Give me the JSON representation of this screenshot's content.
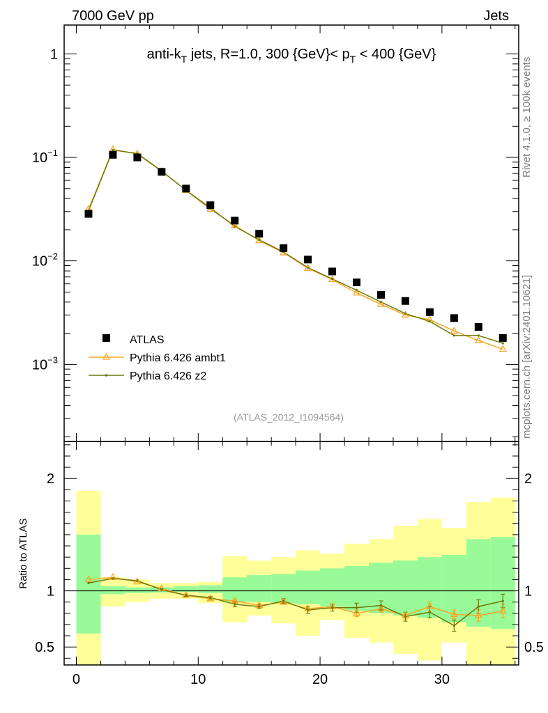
{
  "header": {
    "energy_label": "7000 GeV pp",
    "category_label": "Jets",
    "side_label_top": "Rivet 4.1.0, ≥ 100k events",
    "side_label_bottom": "mcplots.cern.ch [arXiv:2401.10621]",
    "analysis_tag": "(ATLAS_2012_I1094564)"
  },
  "chart_data": {
    "type": "line",
    "title": {
      "pre": "anti-k",
      "sub1": "T",
      "mid": " jets, R=1.0, 300 {GeV}< p",
      "sub2": "T",
      "post": " < 400 {GeV}"
    },
    "xlim": [
      -1,
      36.3
    ],
    "main_ylim": [
      0.00018,
      1.9
    ],
    "ratio_ylim": [
      0.34,
      2.33
    ],
    "ratio_ylabel": "Ratio to ATLAS",
    "x_tick_labels": [
      {
        "value": 0,
        "label": "0"
      },
      {
        "value": 10,
        "label": "10"
      },
      {
        "value": 20,
        "label": "20"
      },
      {
        "value": 30,
        "label": "30"
      }
    ],
    "main_y_tick_labels": [
      {
        "value": 1,
        "base": "1",
        "exp": ""
      },
      {
        "value": 0.1,
        "base": "10",
        "exp": "−1"
      },
      {
        "value": 0.01,
        "base": "10",
        "exp": "−2"
      },
      {
        "value": 0.001,
        "base": "10",
        "exp": "−3"
      }
    ],
    "ratio_y_tick_labels": [
      {
        "value": 2,
        "label": "2"
      },
      {
        "value": 1,
        "label": "1"
      },
      {
        "value": 0.5,
        "label": "0.5"
      }
    ],
    "bin_edges": [
      0,
      2,
      4,
      6,
      8,
      10,
      12,
      14,
      16,
      18,
      20,
      22,
      24,
      26,
      28,
      30,
      32,
      34,
      36
    ],
    "x": [
      1,
      3,
      5,
      7,
      9,
      11,
      13,
      15,
      17,
      19,
      21,
      23,
      25,
      27,
      29,
      31,
      33,
      35
    ],
    "series": [
      {
        "name": "ATLAS",
        "color": "#000000",
        "marker": "square",
        "values": [
          0.0285,
          0.106,
          0.1,
          0.0725,
          0.05,
          0.0345,
          0.0245,
          0.0183,
          0.0133,
          0.0103,
          0.0079,
          0.0062,
          0.0047,
          0.0041,
          0.0032,
          0.0028,
          0.0023,
          0.0018
        ]
      },
      {
        "name": "Pythia 6.426 ambt1",
        "color": "#f5a623",
        "marker": "triangle",
        "values": [
          0.0315,
          0.119,
          0.108,
          0.0735,
          0.048,
          0.0315,
          0.022,
          0.0157,
          0.012,
          0.0085,
          0.0066,
          0.0049,
          0.0038,
          0.003,
          0.0027,
          0.0021,
          0.0017,
          0.0014
        ],
        "ratio": [
          1.1,
          1.12,
          1.08,
          1.02,
          0.96,
          0.93,
          0.91,
          0.87,
          0.9,
          0.84,
          0.86,
          0.8,
          0.84,
          0.78,
          0.86,
          0.79,
          0.78,
          0.82
        ],
        "ratio_err": [
          0,
          0,
          0,
          0,
          0.01,
          0.01,
          0.01,
          0.01,
          0.02,
          0.02,
          0.02,
          0.03,
          0.03,
          0.03,
          0.04,
          0.04,
          0.05,
          0.06
        ]
      },
      {
        "name": "Pythia 6.426 z2",
        "color": "#6b7a0a",
        "marker": "dot",
        "values": [
          0.0305,
          0.118,
          0.109,
          0.074,
          0.048,
          0.0325,
          0.0215,
          0.016,
          0.0122,
          0.0086,
          0.0067,
          0.0052,
          0.004,
          0.0031,
          0.0026,
          0.0019,
          0.0019,
          0.0016
        ],
        "ratio": [
          1.07,
          1.11,
          1.09,
          1.01,
          0.96,
          0.94,
          0.88,
          0.86,
          0.91,
          0.83,
          0.85,
          0.85,
          0.87,
          0.77,
          0.81,
          0.69,
          0.86,
          0.91
        ],
        "ratio_err": [
          0,
          0,
          0,
          0.01,
          0.01,
          0.01,
          0.02,
          0.02,
          0.02,
          0.03,
          0.03,
          0.04,
          0.04,
          0.04,
          0.05,
          0.05,
          0.06,
          0.06
        ]
      }
    ],
    "uncertainty_bands": {
      "inner_color": "#98fb98",
      "outer_color": "#ffff99",
      "inner_low": [
        0.62,
        0.97,
        0.98,
        0.985,
        0.99,
        0.98,
        0.9,
        0.9,
        0.89,
        0.88,
        0.86,
        0.82,
        0.8,
        0.78,
        0.76,
        0.72,
        0.68,
        0.66
      ],
      "inner_high": [
        1.5,
        1.04,
        1.03,
        1.03,
        1.04,
        1.05,
        1.12,
        1.14,
        1.15,
        1.18,
        1.2,
        1.22,
        1.25,
        1.27,
        1.3,
        1.32,
        1.46,
        1.48
      ],
      "outer_low": [
        0.34,
        0.86,
        0.9,
        0.93,
        0.93,
        0.89,
        0.72,
        0.78,
        0.71,
        0.6,
        0.74,
        0.58,
        0.54,
        0.44,
        0.38,
        0.54,
        0.34,
        0.34
      ],
      "outer_high": [
        1.89,
        1.12,
        1.1,
        1.07,
        1.07,
        1.08,
        1.31,
        1.27,
        1.3,
        1.36,
        1.33,
        1.42,
        1.46,
        1.58,
        1.64,
        1.56,
        1.79,
        1.83
      ]
    }
  }
}
